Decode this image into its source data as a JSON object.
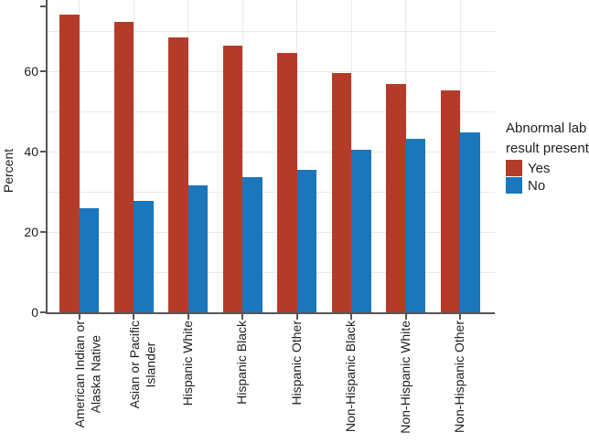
{
  "figure": {
    "y_axis": {
      "title": "Percent",
      "tick_values": [
        0,
        20,
        40,
        60
      ],
      "tick_labels": [
        "0",
        "20",
        "40",
        "60"
      ],
      "gridline_values": [
        10,
        20,
        30,
        40,
        50,
        60,
        70
      ]
    },
    "x_axis": {
      "category_label_lines": [
        [
          "American Indian or",
          "Alaska Native"
        ],
        [
          "Asian or Pacific",
          "Islander"
        ],
        [
          "Hispanic White"
        ],
        [
          "Hispanic Black"
        ],
        [
          "Hispanic Other"
        ],
        [
          "Non-Hispanic Black"
        ],
        [
          "Non-Hispanic White"
        ],
        [
          "Non-Hispanic Other"
        ]
      ]
    },
    "legend": {
      "title_lines": [
        "Abnormal lab",
        "result present"
      ],
      "items": [
        {
          "label": "Yes",
          "color": "#b43b28"
        },
        {
          "label": "No",
          "color": "#1b76bc"
        }
      ]
    },
    "colors": {
      "grid": "#e9e9e9",
      "axis": "#565656",
      "yes_red": "#b43b28",
      "no_blue": "#1b76bc"
    }
  },
  "chart_data": {
    "type": "bar",
    "title": "",
    "xlabel": "",
    "ylabel": "Percent",
    "ylim": [
      0,
      78
    ],
    "grid": true,
    "legend_position": "right",
    "legend_title": "Abnormal lab result present",
    "categories": [
      "American Indian or Alaska Native",
      "Asian or Pacific Islander",
      "Hispanic White",
      "Hispanic Black",
      "Hispanic Other",
      "Non-Hispanic Black",
      "Non-Hispanic White",
      "Non-Hispanic Other"
    ],
    "series": [
      {
        "name": "Yes",
        "color": "#b43b28",
        "values": [
          74.0,
          72.2,
          68.5,
          66.4,
          64.5,
          59.5,
          56.9,
          55.2
        ]
      },
      {
        "name": "No",
        "color": "#1b76bc",
        "values": [
          26.0,
          27.8,
          31.5,
          33.6,
          35.5,
          40.5,
          43.1,
          44.8
        ]
      }
    ]
  }
}
